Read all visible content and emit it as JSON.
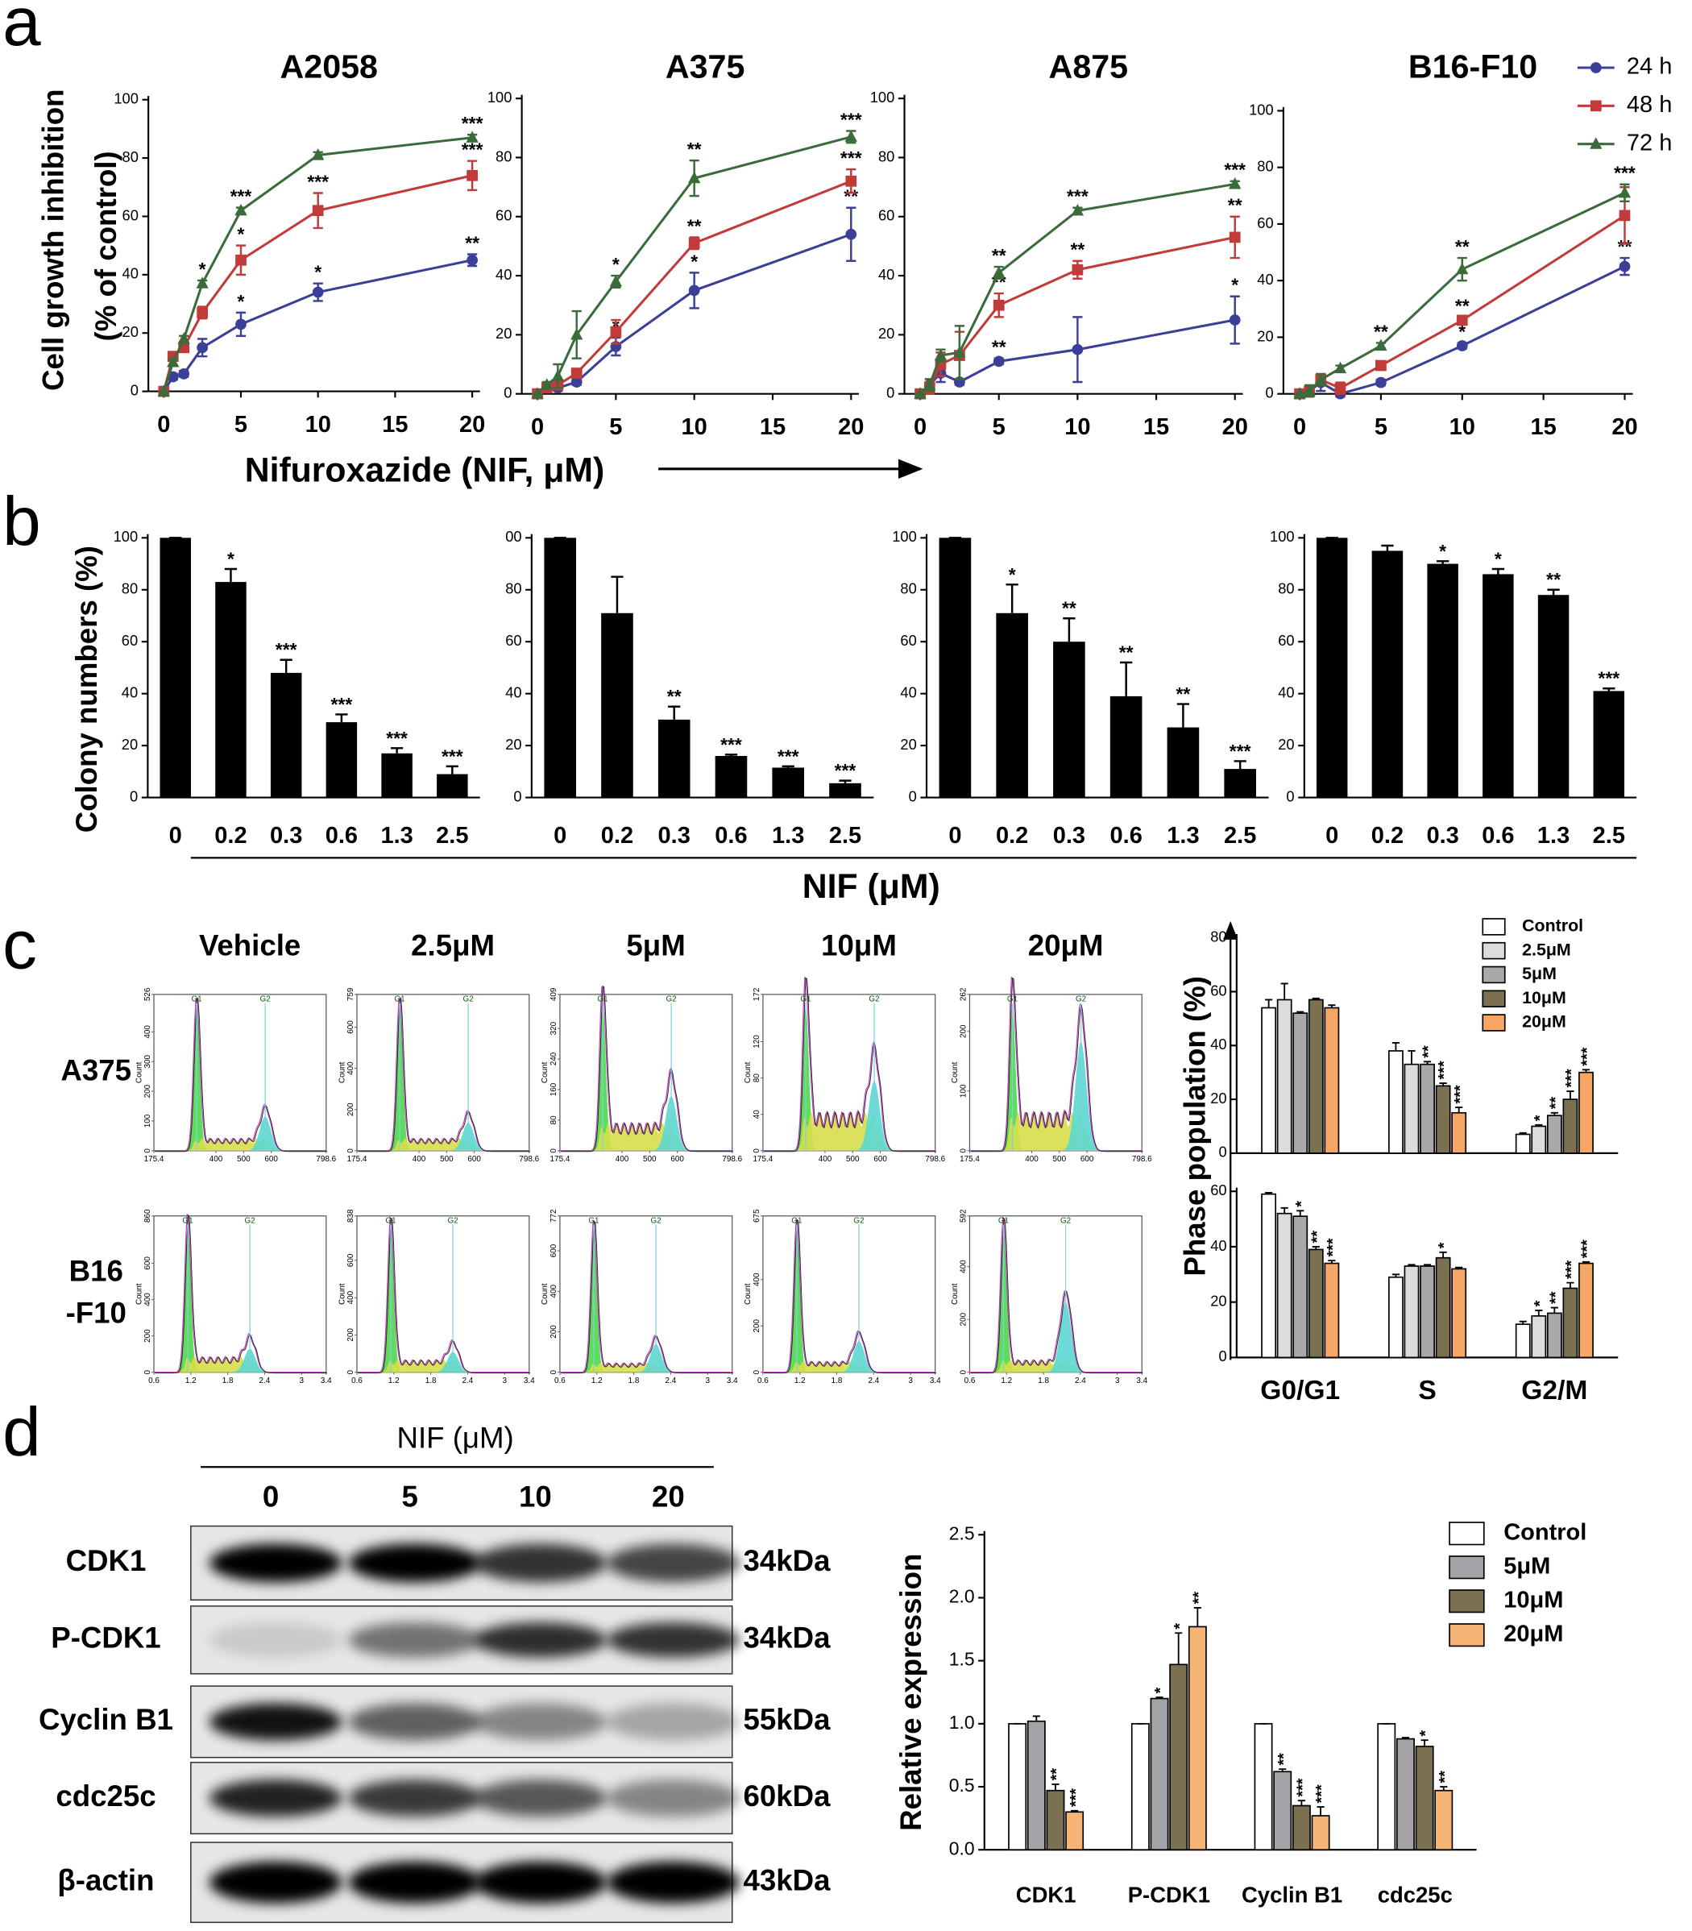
{
  "figure": {
    "panels": [
      "a",
      "b",
      "c",
      "d"
    ],
    "a_ylabel": [
      "Cell growth inhibition",
      "(% of control)"
    ],
    "a_xlabel": "Nifuroxazide (NIF, μM)",
    "b_ylabel": "Colony numbers (%)",
    "b_xlabel": "NIF (μM)",
    "c_ylabel": "Phase population (%)"
  },
  "chart_data": [
    {
      "type": "line",
      "title": "A2058",
      "x": [
        0,
        0.6,
        1.3,
        2.5,
        5,
        10,
        20
      ],
      "xlim": [
        -1,
        20.5
      ],
      "xticks": [
        0,
        5,
        10,
        15,
        20
      ],
      "ylim": [
        0,
        100
      ],
      "yticks": [
        0,
        20,
        40,
        60,
        80,
        100
      ],
      "series": [
        {
          "color": "#3b3f98",
          "marker": "circle",
          "values": [
            0,
            5,
            6,
            15,
            23,
            34,
            45
          ],
          "errors": [
            0,
            1,
            1,
            3,
            4,
            3,
            2
          ],
          "annotations": [
            null,
            null,
            null,
            null,
            "*",
            "*",
            "**"
          ]
        },
        {
          "color": "#c23b3b",
          "marker": "square",
          "values": [
            0,
            12,
            15,
            27,
            45,
            62,
            74
          ],
          "errors": [
            0,
            1,
            1,
            2,
            5,
            6,
            5
          ],
          "annotations": [
            null,
            null,
            null,
            null,
            "*",
            "***",
            "***"
          ]
        },
        {
          "color": "#3b6b3b",
          "marker": "triangle",
          "values": [
            0,
            10,
            18,
            37,
            62,
            81,
            87
          ],
          "errors": [
            0,
            1,
            1,
            1,
            1,
            1,
            1
          ],
          "annotations": [
            null,
            null,
            null,
            "*",
            "***",
            null,
            "***"
          ]
        }
      ]
    },
    {
      "type": "line",
      "title": "A375",
      "x": [
        0,
        0.6,
        1.3,
        2.5,
        5,
        10,
        20
      ],
      "xlim": [
        -1,
        20.5
      ],
      "xticks": [
        0,
        5,
        10,
        15,
        20
      ],
      "ylim": [
        0,
        100
      ],
      "yticks": [
        0,
        20,
        40,
        60,
        80,
        100
      ],
      "series": [
        {
          "color": "#3b3f98",
          "marker": "circle",
          "values": [
            0,
            2,
            2,
            4,
            16,
            35,
            54
          ],
          "errors": [
            0,
            1,
            1,
            1,
            3,
            6,
            9
          ],
          "annotations": [
            null,
            null,
            null,
            null,
            "*",
            "*",
            "**"
          ]
        },
        {
          "color": "#c23b3b",
          "marker": "square",
          "values": [
            0,
            2,
            3,
            7,
            21,
            51,
            72
          ],
          "errors": [
            0,
            1,
            1,
            1,
            4,
            2,
            4
          ],
          "annotations": [
            null,
            null,
            null,
            null,
            null,
            "**",
            "***"
          ]
        },
        {
          "color": "#3b6b3b",
          "marker": "triangle",
          "values": [
            0,
            3,
            6,
            20,
            38,
            73,
            87
          ],
          "errors": [
            0,
            1,
            4,
            8,
            2,
            6,
            2
          ],
          "annotations": [
            null,
            null,
            null,
            null,
            "*",
            "**",
            "***"
          ]
        }
      ]
    },
    {
      "type": "line",
      "title": "A875",
      "x": [
        0,
        0.6,
        1.3,
        2.5,
        5,
        10,
        20
      ],
      "xlim": [
        -1,
        20.5
      ],
      "xticks": [
        0,
        5,
        10,
        15,
        20
      ],
      "ylim": [
        0,
        100
      ],
      "yticks": [
        0,
        20,
        40,
        60,
        80,
        100
      ],
      "series": [
        {
          "color": "#3b3f98",
          "marker": "circle",
          "values": [
            0,
            3,
            7,
            4,
            11,
            15,
            25
          ],
          "errors": [
            0,
            1,
            3,
            1,
            1,
            11,
            8
          ],
          "annotations": [
            null,
            null,
            null,
            null,
            "**",
            null,
            "*"
          ]
        },
        {
          "color": "#c23b3b",
          "marker": "square",
          "values": [
            0,
            2,
            10,
            13,
            30,
            42,
            53
          ],
          "errors": [
            0,
            2,
            4,
            8,
            4,
            3,
            7
          ],
          "annotations": [
            null,
            null,
            null,
            null,
            "**",
            "**",
            "**"
          ]
        },
        {
          "color": "#3b6b3b",
          "marker": "triangle",
          "values": [
            0,
            3,
            13,
            14,
            41,
            62,
            71
          ],
          "errors": [
            0,
            2,
            2,
            9,
            2,
            1,
            1
          ],
          "annotations": [
            null,
            null,
            null,
            null,
            "**",
            "***",
            "***"
          ]
        }
      ]
    },
    {
      "type": "line",
      "title": "B16-F10",
      "legend": true,
      "x": [
        0,
        0.6,
        1.3,
        2.5,
        5,
        10,
        20
      ],
      "xlim": [
        -1,
        20.5
      ],
      "xticks": [
        0,
        5,
        10,
        15,
        20
      ],
      "ylim": [
        0,
        100
      ],
      "yticks": [
        0,
        20,
        40,
        60,
        80,
        100
      ],
      "series": [
        {
          "name": "24 h",
          "color": "#3b3f98",
          "marker": "circle",
          "values": [
            0,
            1,
            4,
            0,
            4,
            17,
            45
          ],
          "errors": [
            0,
            2,
            3,
            1,
            1,
            1,
            3
          ],
          "annotations": [
            null,
            null,
            null,
            null,
            null,
            "*",
            "**"
          ]
        },
        {
          "name": "48 h",
          "color": "#c23b3b",
          "marker": "square",
          "values": [
            0,
            1,
            5,
            2,
            10,
            26,
            63
          ],
          "errors": [
            0,
            2,
            1,
            2,
            1,
            1,
            10
          ],
          "annotations": [
            null,
            null,
            null,
            null,
            null,
            "**",
            null
          ]
        },
        {
          "name": "72 h",
          "color": "#3b6b3b",
          "marker": "triangle",
          "values": [
            0,
            1,
            5,
            9,
            17,
            44,
            71
          ],
          "errors": [
            0,
            2,
            2,
            1,
            1,
            4,
            3
          ],
          "annotations": [
            null,
            null,
            null,
            null,
            "**",
            "**",
            "***"
          ]
        }
      ]
    },
    {
      "type": "bar",
      "color": "#000000",
      "categories": [
        "0",
        "0.2",
        "0.3",
        "0.6",
        "1.3",
        "2.5"
      ],
      "values": [
        100,
        83,
        48,
        29,
        17,
        9
      ],
      "errors": [
        0,
        5,
        5,
        3,
        2,
        3
      ],
      "annotations": [
        null,
        "*",
        "***",
        "***",
        "***",
        "***"
      ],
      "ylim": [
        0,
        100
      ],
      "yticks": [
        0,
        20,
        40,
        60,
        80,
        100
      ]
    },
    {
      "type": "bar",
      "color": "#000000",
      "categories": [
        "0",
        "0.2",
        "0.3",
        "0.6",
        "1.3",
        "2.5"
      ],
      "values": [
        100,
        71,
        30,
        16,
        11.5,
        5.5
      ],
      "errors": [
        0,
        14,
        5,
        0.5,
        0.5,
        1
      ],
      "annotations": [
        null,
        null,
        "**",
        "***",
        "***",
        "***"
      ],
      "ylim": [
        0,
        100
      ],
      "yticks": [
        0,
        20,
        40,
        60,
        80,
        {
          "value": 100,
          "label": "00"
        }
      ]
    },
    {
      "type": "bar",
      "color": "#000000",
      "categories": [
        "0",
        "0.2",
        "0.3",
        "0.6",
        "1.3",
        "2.5"
      ],
      "values": [
        100,
        71,
        60,
        39,
        27,
        11
      ],
      "errors": [
        0,
        11,
        9,
        13,
        9,
        3
      ],
      "annotations": [
        null,
        "*",
        "**",
        "**",
        "**",
        "***"
      ],
      "ylim": [
        0,
        100
      ],
      "yticks": [
        0,
        20,
        40,
        60,
        80,
        100
      ]
    },
    {
      "type": "bar",
      "color": "#000000",
      "categories": [
        "0",
        "0.2",
        "0.3",
        "0.6",
        "1.3",
        "2.5"
      ],
      "values": [
        100,
        95,
        90,
        86,
        78,
        41
      ],
      "errors": [
        0,
        2,
        1,
        2,
        2,
        1
      ],
      "annotations": [
        null,
        null,
        "*",
        "*",
        "**",
        "***"
      ],
      "ylim": [
        0,
        100
      ],
      "yticks": [
        0,
        20,
        40,
        60,
        80,
        100
      ]
    },
    {
      "type": "grouped_bar",
      "legend": true,
      "ylim": [
        0,
        80
      ],
      "yticks": [
        0,
        20,
        40,
        60,
        80
      ],
      "series": [
        {
          "name": "Control",
          "color": "#ffffff",
          "values": [
            54,
            38,
            7
          ],
          "errors": [
            3,
            3,
            0.5
          ],
          "annotations": [
            null,
            null,
            null
          ]
        },
        {
          "name": "2.5μM",
          "color": "#dcdcdc",
          "values": [
            57,
            33,
            10
          ],
          "errors": [
            6,
            5,
            0.5
          ],
          "annotations": [
            null,
            null,
            "*"
          ]
        },
        {
          "name": "5μM",
          "color": "#a9a9ab",
          "values": [
            52,
            33,
            14
          ],
          "errors": [
            0.5,
            1,
            1
          ],
          "annotations": [
            null,
            "**",
            "**"
          ]
        },
        {
          "name": "10μM",
          "color": "#7b7150",
          "values": [
            57,
            25,
            20
          ],
          "errors": [
            0.5,
            1,
            3
          ],
          "annotations": [
            null,
            "***",
            "***"
          ]
        },
        {
          "name": "20μM",
          "color": "#f6a765",
          "values": [
            54,
            15,
            30
          ],
          "errors": [
            1,
            2,
            1
          ],
          "annotations": [
            null,
            "***",
            "***"
          ]
        }
      ]
    },
    {
      "type": "grouped_bar",
      "categories": [
        "G0/G1",
        "S",
        "G2/M"
      ],
      "ylim": [
        0,
        60
      ],
      "yticks": [
        0,
        20,
        40,
        60
      ],
      "series": [
        {
          "color": "#ffffff",
          "values": [
            59,
            29,
            12
          ],
          "errors": [
            0.5,
            1,
            1
          ],
          "annotations": [
            null,
            null,
            null
          ]
        },
        {
          "color": "#dcdcdc",
          "values": [
            52,
            33,
            15
          ],
          "errors": [
            2,
            0.5,
            2
          ],
          "annotations": [
            null,
            null,
            "*"
          ]
        },
        {
          "color": "#a9a9ab",
          "values": [
            51,
            33,
            16
          ],
          "errors": [
            2,
            0.5,
            2
          ],
          "annotations": [
            "*",
            null,
            "**"
          ]
        },
        {
          "color": "#7b7150",
          "values": [
            39,
            36,
            25
          ],
          "errors": [
            1,
            2,
            2
          ],
          "annotations": [
            "**",
            "*",
            "***"
          ]
        },
        {
          "color": "#f6a765",
          "values": [
            34,
            32,
            34
          ],
          "errors": [
            1,
            0.5,
            0.5
          ],
          "annotations": [
            "***",
            null,
            "***"
          ]
        }
      ]
    },
    {
      "type": "grouped_bar",
      "legend": true,
      "ylabel": "Relative expression",
      "categories": [
        "CDK1",
        "P-CDK1",
        "Cyclin B1",
        "cdc25c"
      ],
      "ylim": [
        0,
        2.5
      ],
      "yticks": [
        {
          "value": 0,
          "label": "0.0"
        },
        0.5,
        {
          "value": 1,
          "label": "1.0"
        },
        1.5,
        {
          "value": 2,
          "label": "2.0"
        },
        2.5
      ],
      "series": [
        {
          "name": "Control",
          "color": "#ffffff",
          "values": [
            1,
            1,
            1,
            1
          ],
          "errors": [
            0,
            0,
            0,
            0
          ],
          "annotations": [
            null,
            null,
            null,
            null
          ]
        },
        {
          "name": "5μM",
          "color": "#a3a3a8",
          "values": [
            1.02,
            1.2,
            0.62,
            0.88
          ],
          "errors": [
            0.04,
            0.01,
            0.02,
            0.01
          ],
          "annotations": [
            null,
            "*",
            "**",
            null
          ]
        },
        {
          "name": "10μM",
          "color": "#7b7150",
          "values": [
            0.47,
            1.47,
            0.35,
            0.82
          ],
          "errors": [
            0.05,
            0.25,
            0.04,
            0.05
          ],
          "annotations": [
            "**",
            "*",
            "***",
            "*"
          ]
        },
        {
          "name": "20μM",
          "color": "#f7b477",
          "values": [
            0.3,
            1.77,
            0.27,
            0.47
          ],
          "errors": [
            0.01,
            0.15,
            0.07,
            0.03
          ],
          "annotations": [
            "***",
            "**",
            "***",
            "**"
          ]
        }
      ]
    }
  ],
  "flow": {
    "columns": [
      "Vehicle",
      "2.5μM",
      "5μM",
      "10μM",
      "20μM"
    ],
    "ylabel": "Count",
    "rows": [
      {
        "label": [
          "A375"
        ],
        "xlim": [
          175.4,
          798.6
        ],
        "xticks": [
          175.4,
          400,
          500,
          600,
          798.6
        ],
        "markers": [
          {
            "label": "G1",
            "x": 330
          },
          {
            "label": "G2",
            "x": 578
          }
        ],
        "yticks": [
          [
            0,
            100,
            200,
            300,
            400,
            526
          ],
          [
            0,
            200,
            400,
            600,
            759
          ],
          [
            0,
            80,
            160,
            240,
            320,
            409
          ],
          [
            0,
            40,
            80,
            120,
            172
          ],
          [
            0,
            100,
            200,
            262
          ]
        ]
      },
      {
        "label": [
          "B16",
          "-F10"
        ],
        "xlim": [
          0.6,
          3.4
        ],
        "xticks": [
          0.6,
          1.2,
          1.8,
          2.4,
          3,
          3.4
        ],
        "markers": [
          {
            "label": "G1",
            "x": 1.15
          },
          {
            "label": "G2",
            "x": 2.16
          }
        ],
        "yticks": [
          [
            0,
            200,
            400,
            600,
            860
          ],
          [
            0,
            200,
            400,
            600,
            838
          ],
          [
            0,
            200,
            400,
            600,
            772
          ],
          [
            0,
            200,
            400,
            675
          ],
          [
            0,
            200,
            400,
            592
          ]
        ]
      }
    ]
  },
  "blot": {
    "title": "NIF (μM)",
    "lanes": [
      "0",
      "5",
      "10",
      "20"
    ],
    "rows": [
      {
        "label": "CDK1",
        "size": "34kDa"
      },
      {
        "label": "P-CDK1",
        "size": "34kDa"
      },
      {
        "label": "Cyclin B1",
        "size": "55kDa"
      },
      {
        "label": "cdc25c",
        "size": "60kDa"
      },
      {
        "label": "β-actin",
        "size": "43kDa"
      }
    ]
  }
}
